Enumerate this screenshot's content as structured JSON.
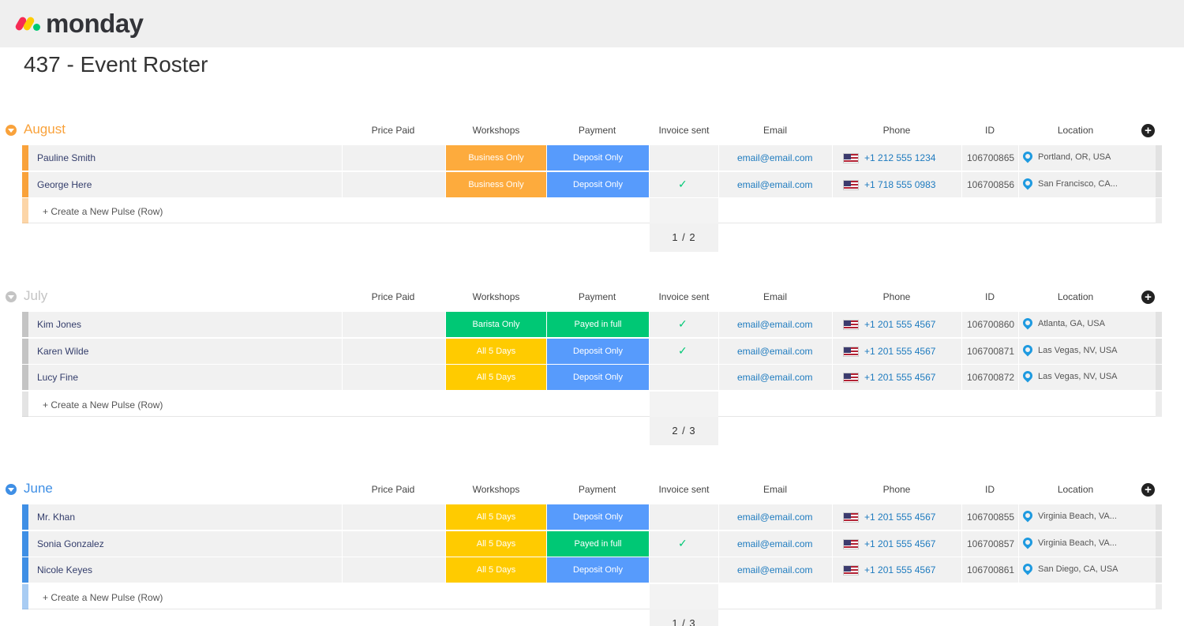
{
  "app": {
    "logo_text": "monday"
  },
  "board": {
    "title": "437 - Event Roster"
  },
  "columns": {
    "price_paid": "Price Paid",
    "workshops": "Workshops",
    "payment": "Payment",
    "invoice_sent": "Invoice sent",
    "email": "Email",
    "phone": "Phone",
    "id": "ID",
    "location": "Location"
  },
  "new_row_label": "+ Create a New Pulse (Row)",
  "colors": {
    "august": "#f9a23b",
    "july": "#c4c4c4",
    "june": "#3f8fe5",
    "orange_status": "#fdab3d",
    "blue_status": "#579bfc",
    "green_status": "#00c875",
    "yellow_status": "#ffcb00"
  },
  "groups": [
    {
      "name": "August",
      "summary": "1 / 2",
      "rows": [
        {
          "name": "Pauline Smith",
          "workshop": "Business Only",
          "payment": "Deposit Only",
          "invoice_sent": false,
          "email": "email@email.com",
          "phone": "+1 212 555 1234",
          "id": "106700865",
          "location": "Portland, OR, USA"
        },
        {
          "name": "George Here",
          "workshop": "Business Only",
          "payment": "Deposit Only",
          "invoice_sent": true,
          "email": "email@email.com",
          "phone": "+1 718 555 0983",
          "id": "106700856",
          "location": "San Francisco, CA..."
        }
      ]
    },
    {
      "name": "July",
      "summary": "2 / 3",
      "rows": [
        {
          "name": "Kim Jones",
          "workshop": "Barista Only",
          "payment": "Payed in full",
          "invoice_sent": true,
          "email": "email@email.com",
          "phone": "+1 201 555 4567",
          "id": "106700860",
          "location": "Atlanta, GA, USA"
        },
        {
          "name": "Karen Wilde",
          "workshop": "All 5 Days",
          "payment": "Deposit Only",
          "invoice_sent": true,
          "email": "email@email.com",
          "phone": "+1 201 555 4567",
          "id": "106700871",
          "location": "Las Vegas, NV, USA"
        },
        {
          "name": "Lucy Fine",
          "workshop": "All 5 Days",
          "payment": "Deposit Only",
          "invoice_sent": false,
          "email": "email@email.com",
          "phone": "+1 201 555 4567",
          "id": "106700872",
          "location": "Las Vegas, NV, USA"
        }
      ]
    },
    {
      "name": "June",
      "summary": "1 / 3",
      "rows": [
        {
          "name": "Mr. Khan",
          "workshop": "All 5 Days",
          "payment": "Deposit Only",
          "invoice_sent": false,
          "email": "email@email.com",
          "phone": "+1 201 555 4567",
          "id": "106700855",
          "location": "Virginia Beach, VA..."
        },
        {
          "name": "Sonia Gonzalez",
          "workshop": "All 5 Days",
          "payment": "Payed in full",
          "invoice_sent": true,
          "email": "email@email.com",
          "phone": "+1 201 555 4567",
          "id": "106700857",
          "location": "Virginia Beach, VA..."
        },
        {
          "name": "Nicole Keyes",
          "workshop": "All 5 Days",
          "payment": "Deposit Only",
          "invoice_sent": false,
          "email": "email@email.com",
          "phone": "+1 201 555 4567",
          "id": "106700861",
          "location": "San Diego, CA, USA"
        }
      ]
    }
  ],
  "check_glyph": "✓",
  "add_column_glyph": "+"
}
